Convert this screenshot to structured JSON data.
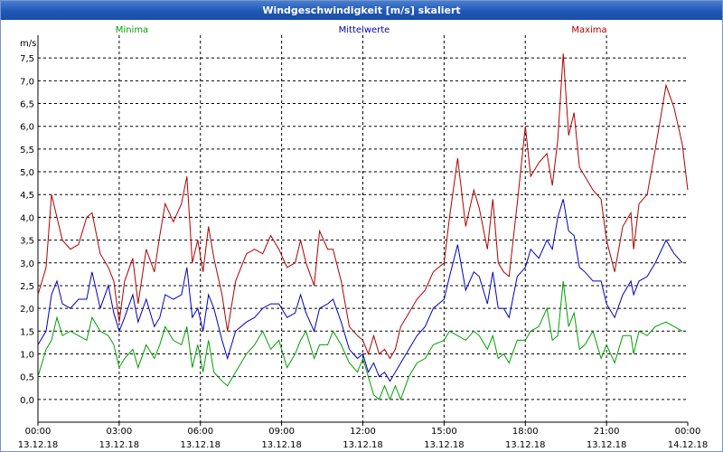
{
  "window": {
    "title": "Windgeschwindigkeit [m/s] skaliert"
  },
  "chart_data": {
    "type": "line",
    "title": "Windgeschwindigkeit [m/s] skaliert",
    "ylabel": "m/s",
    "ylim": [
      -0.5,
      8.0
    ],
    "yticks": [
      0,
      0.5,
      1,
      1.5,
      2,
      2.5,
      3,
      3.5,
      4,
      4.5,
      5,
      5.5,
      6,
      6.5,
      7,
      7.5
    ],
    "ytick_labels": [
      "0,0",
      "0,5",
      "1,0",
      "1,5",
      "2,0",
      "2,5",
      "3,0",
      "3,5",
      "4,0",
      "4,5",
      "5,0",
      "5,5",
      "6,0",
      "6,5",
      "7,0",
      "7,5"
    ],
    "xlim": [
      0,
      24
    ],
    "xticks": [
      0,
      3,
      6,
      9,
      12,
      15,
      18,
      21,
      24
    ],
    "xtick_labels": [
      {
        "time": "00:00",
        "date": "13.12.18"
      },
      {
        "time": "03:00",
        "date": "13.12.18"
      },
      {
        "time": "06:00",
        "date": "13.12.18"
      },
      {
        "time": "09:00",
        "date": "13.12.18"
      },
      {
        "time": "12:00",
        "date": "13.12.18"
      },
      {
        "time": "15:00",
        "date": "13.12.18"
      },
      {
        "time": "18:00",
        "date": "13.12.18"
      },
      {
        "time": "21:00",
        "date": "13.12.18"
      },
      {
        "time": "00:00",
        "date": "14.12.18"
      }
    ],
    "grid": true,
    "series": [
      {
        "name": "Minima",
        "color": "#00a000",
        "points": [
          [
            0,
            0.5
          ],
          [
            0.3,
            1.1
          ],
          [
            0.5,
            1.3
          ],
          [
            0.7,
            1.8
          ],
          [
            0.9,
            1.4
          ],
          [
            1.2,
            1.5
          ],
          [
            1.5,
            1.4
          ],
          [
            1.8,
            1.3
          ],
          [
            2.0,
            1.8
          ],
          [
            2.3,
            1.5
          ],
          [
            2.6,
            1.4
          ],
          [
            2.8,
            1.2
          ],
          [
            3.0,
            0.7
          ],
          [
            3.2,
            0.9
          ],
          [
            3.5,
            1.1
          ],
          [
            3.7,
            0.7
          ],
          [
            4.0,
            1.2
          ],
          [
            4.3,
            0.9
          ],
          [
            4.5,
            1.2
          ],
          [
            4.7,
            1.6
          ],
          [
            5.0,
            1.3
          ],
          [
            5.3,
            1.2
          ],
          [
            5.5,
            1.6
          ],
          [
            5.7,
            0.7
          ],
          [
            5.9,
            1.2
          ],
          [
            6.1,
            0.6
          ],
          [
            6.3,
            1.3
          ],
          [
            6.5,
            0.6
          ],
          [
            6.8,
            0.4
          ],
          [
            7.0,
            0.3
          ],
          [
            7.3,
            0.6
          ],
          [
            7.7,
            1.0
          ],
          [
            8.0,
            1.2
          ],
          [
            8.3,
            1.5
          ],
          [
            8.6,
            1.1
          ],
          [
            8.9,
            1.3
          ],
          [
            9.2,
            0.7
          ],
          [
            9.5,
            1.0
          ],
          [
            9.7,
            1.3
          ],
          [
            9.9,
            1.5
          ],
          [
            10.2,
            0.9
          ],
          [
            10.4,
            1.2
          ],
          [
            10.7,
            1.2
          ],
          [
            10.9,
            1.5
          ],
          [
            11.2,
            1.2
          ],
          [
            11.5,
            0.8
          ],
          [
            11.8,
            0.6
          ],
          [
            12.0,
            0.9
          ],
          [
            12.2,
            0.5
          ],
          [
            12.4,
            0.1
          ],
          [
            12.6,
            0.0
          ],
          [
            12.8,
            0.3
          ],
          [
            13.0,
            0.0
          ],
          [
            13.2,
            0.3
          ],
          [
            13.4,
            0.0
          ],
          [
            13.7,
            0.5
          ],
          [
            14.0,
            0.8
          ],
          [
            14.3,
            0.9
          ],
          [
            14.6,
            1.2
          ],
          [
            15.0,
            1.3
          ],
          [
            15.2,
            1.5
          ],
          [
            15.5,
            1.4
          ],
          [
            15.8,
            1.3
          ],
          [
            16.1,
            1.5
          ],
          [
            16.3,
            1.4
          ],
          [
            16.6,
            1.1
          ],
          [
            16.8,
            1.4
          ],
          [
            17.0,
            0.9
          ],
          [
            17.2,
            1.0
          ],
          [
            17.4,
            0.8
          ],
          [
            17.7,
            1.3
          ],
          [
            18.0,
            1.3
          ],
          [
            18.2,
            1.5
          ],
          [
            18.5,
            1.6
          ],
          [
            18.8,
            2.0
          ],
          [
            19.0,
            1.3
          ],
          [
            19.2,
            1.4
          ],
          [
            19.4,
            2.6
          ],
          [
            19.6,
            1.6
          ],
          [
            19.8,
            1.9
          ],
          [
            20.0,
            1.1
          ],
          [
            20.2,
            1.2
          ],
          [
            20.5,
            1.5
          ],
          [
            20.8,
            0.9
          ],
          [
            21.0,
            1.2
          ],
          [
            21.3,
            0.8
          ],
          [
            21.6,
            1.4
          ],
          [
            21.9,
            1.4
          ],
          [
            22.0,
            1.0
          ],
          [
            22.2,
            1.5
          ],
          [
            22.5,
            1.4
          ],
          [
            22.8,
            1.6
          ],
          [
            23.2,
            1.7
          ],
          [
            23.5,
            1.6
          ],
          [
            23.8,
            1.5
          ]
        ]
      },
      {
        "name": "Mittelwerte",
        "color": "#0000c0",
        "points": [
          [
            0,
            1.2
          ],
          [
            0.3,
            1.5
          ],
          [
            0.5,
            2.3
          ],
          [
            0.7,
            2.6
          ],
          [
            0.9,
            2.1
          ],
          [
            1.2,
            2.0
          ],
          [
            1.5,
            2.2
          ],
          [
            1.8,
            2.2
          ],
          [
            2.0,
            2.8
          ],
          [
            2.3,
            2.0
          ],
          [
            2.6,
            2.5
          ],
          [
            2.8,
            1.9
          ],
          [
            3.0,
            1.5
          ],
          [
            3.2,
            1.8
          ],
          [
            3.5,
            2.3
          ],
          [
            3.7,
            1.7
          ],
          [
            4.0,
            2.2
          ],
          [
            4.3,
            1.6
          ],
          [
            4.5,
            1.8
          ],
          [
            4.7,
            2.3
          ],
          [
            5.0,
            2.2
          ],
          [
            5.3,
            2.3
          ],
          [
            5.5,
            2.9
          ],
          [
            5.7,
            1.8
          ],
          [
            5.9,
            2.0
          ],
          [
            6.1,
            1.5
          ],
          [
            6.3,
            2.3
          ],
          [
            6.5,
            2.0
          ],
          [
            6.8,
            1.3
          ],
          [
            7.0,
            0.9
          ],
          [
            7.3,
            1.5
          ],
          [
            7.7,
            1.7
          ],
          [
            8.0,
            1.8
          ],
          [
            8.3,
            2.0
          ],
          [
            8.6,
            2.1
          ],
          [
            8.9,
            2.1
          ],
          [
            9.2,
            1.8
          ],
          [
            9.5,
            1.9
          ],
          [
            9.7,
            2.3
          ],
          [
            9.9,
            1.9
          ],
          [
            10.2,
            1.5
          ],
          [
            10.4,
            2.0
          ],
          [
            10.7,
            2.1
          ],
          [
            10.9,
            2.2
          ],
          [
            11.2,
            1.7
          ],
          [
            11.5,
            1.1
          ],
          [
            11.8,
            0.9
          ],
          [
            12.0,
            1.0
          ],
          [
            12.2,
            0.6
          ],
          [
            12.4,
            0.8
          ],
          [
            12.6,
            0.5
          ],
          [
            12.8,
            0.6
          ],
          [
            13.0,
            0.4
          ],
          [
            13.2,
            0.6
          ],
          [
            13.4,
            0.8
          ],
          [
            13.7,
            1.1
          ],
          [
            14.0,
            1.4
          ],
          [
            14.3,
            1.6
          ],
          [
            14.6,
            2.0
          ],
          [
            15.0,
            2.2
          ],
          [
            15.2,
            2.7
          ],
          [
            15.5,
            3.4
          ],
          [
            15.8,
            2.4
          ],
          [
            16.1,
            2.8
          ],
          [
            16.3,
            2.7
          ],
          [
            16.6,
            2.1
          ],
          [
            16.8,
            2.8
          ],
          [
            17.0,
            2.0
          ],
          [
            17.2,
            2.0
          ],
          [
            17.4,
            1.8
          ],
          [
            17.7,
            2.7
          ],
          [
            18.0,
            2.9
          ],
          [
            18.2,
            3.3
          ],
          [
            18.5,
            3.1
          ],
          [
            18.8,
            3.5
          ],
          [
            19.0,
            3.3
          ],
          [
            19.2,
            4.0
          ],
          [
            19.4,
            4.4
          ],
          [
            19.6,
            3.7
          ],
          [
            19.8,
            3.6
          ],
          [
            20.0,
            2.9
          ],
          [
            20.2,
            2.8
          ],
          [
            20.5,
            2.6
          ],
          [
            20.8,
            2.6
          ],
          [
            21.0,
            2.1
          ],
          [
            21.3,
            1.8
          ],
          [
            21.6,
            2.3
          ],
          [
            21.9,
            2.6
          ],
          [
            22.0,
            2.3
          ],
          [
            22.2,
            2.6
          ],
          [
            22.5,
            2.7
          ],
          [
            22.8,
            3.0
          ],
          [
            23.2,
            3.5
          ],
          [
            23.5,
            3.2
          ],
          [
            23.8,
            3.0
          ]
        ]
      },
      {
        "name": "Maxima",
        "color": "#b00000",
        "points": [
          [
            0,
            2.3
          ],
          [
            0.3,
            2.9
          ],
          [
            0.5,
            4.5
          ],
          [
            0.7,
            4.0
          ],
          [
            0.9,
            3.5
          ],
          [
            1.2,
            3.3
          ],
          [
            1.5,
            3.4
          ],
          [
            1.8,
            4.0
          ],
          [
            2.0,
            4.1
          ],
          [
            2.3,
            3.2
          ],
          [
            2.6,
            2.9
          ],
          [
            2.8,
            2.6
          ],
          [
            3.0,
            1.7
          ],
          [
            3.2,
            2.6
          ],
          [
            3.5,
            3.1
          ],
          [
            3.7,
            2.1
          ],
          [
            4.0,
            3.3
          ],
          [
            4.3,
            2.8
          ],
          [
            4.5,
            3.6
          ],
          [
            4.7,
            4.3
          ],
          [
            5.0,
            3.9
          ],
          [
            5.3,
            4.3
          ],
          [
            5.5,
            4.9
          ],
          [
            5.7,
            3.0
          ],
          [
            5.9,
            3.5
          ],
          [
            6.1,
            2.8
          ],
          [
            6.3,
            3.8
          ],
          [
            6.5,
            3.1
          ],
          [
            6.8,
            2.3
          ],
          [
            7.0,
            1.5
          ],
          [
            7.3,
            2.6
          ],
          [
            7.7,
            3.2
          ],
          [
            8.0,
            3.3
          ],
          [
            8.3,
            3.2
          ],
          [
            8.6,
            3.6
          ],
          [
            8.9,
            3.3
          ],
          [
            9.2,
            2.9
          ],
          [
            9.5,
            3.0
          ],
          [
            9.7,
            3.5
          ],
          [
            9.9,
            3.0
          ],
          [
            10.2,
            2.5
          ],
          [
            10.4,
            3.7
          ],
          [
            10.7,
            3.3
          ],
          [
            10.9,
            3.3
          ],
          [
            11.2,
            2.6
          ],
          [
            11.5,
            1.6
          ],
          [
            11.8,
            1.4
          ],
          [
            12.0,
            1.3
          ],
          [
            12.2,
            1.0
          ],
          [
            12.4,
            1.4
          ],
          [
            12.6,
            1.0
          ],
          [
            12.8,
            1.1
          ],
          [
            13.0,
            0.9
          ],
          [
            13.2,
            1.1
          ],
          [
            13.4,
            1.6
          ],
          [
            13.7,
            1.9
          ],
          [
            14.0,
            2.2
          ],
          [
            14.3,
            2.4
          ],
          [
            14.6,
            2.8
          ],
          [
            15.0,
            3.0
          ],
          [
            15.2,
            4.0
          ],
          [
            15.5,
            5.3
          ],
          [
            15.8,
            3.8
          ],
          [
            16.1,
            4.6
          ],
          [
            16.3,
            4.2
          ],
          [
            16.6,
            3.3
          ],
          [
            16.8,
            4.4
          ],
          [
            17.0,
            3.0
          ],
          [
            17.2,
            2.8
          ],
          [
            17.4,
            2.7
          ],
          [
            17.7,
            4.3
          ],
          [
            18.0,
            6.0
          ],
          [
            18.2,
            4.9
          ],
          [
            18.5,
            5.2
          ],
          [
            18.8,
            5.4
          ],
          [
            19.0,
            4.7
          ],
          [
            19.2,
            5.7
          ],
          [
            19.4,
            7.6
          ],
          [
            19.6,
            5.8
          ],
          [
            19.8,
            6.3
          ],
          [
            20.0,
            5.1
          ],
          [
            20.2,
            4.9
          ],
          [
            20.5,
            4.6
          ],
          [
            20.8,
            4.4
          ],
          [
            21.0,
            3.5
          ],
          [
            21.3,
            2.8
          ],
          [
            21.6,
            3.8
          ],
          [
            21.9,
            4.1
          ],
          [
            22.0,
            3.3
          ],
          [
            22.2,
            4.3
          ],
          [
            22.5,
            4.5
          ],
          [
            22.8,
            5.5
          ],
          [
            23.2,
            6.9
          ],
          [
            23.5,
            6.4
          ],
          [
            23.8,
            5.6
          ],
          [
            24.0,
            4.6
          ]
        ]
      }
    ]
  }
}
